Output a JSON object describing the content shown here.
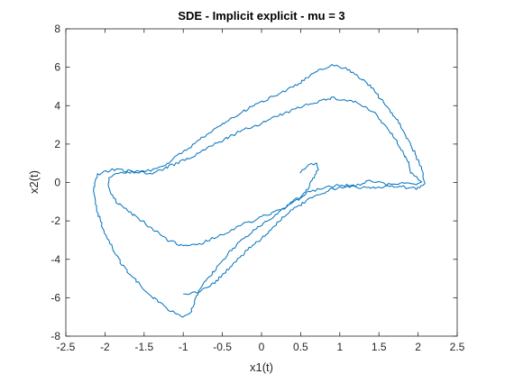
{
  "chart_data": {
    "type": "line",
    "title": "SDE - Implicit explicit - mu = 3",
    "xlabel": "x1(t)",
    "ylabel": "x2(t)",
    "xlim": [
      -2.5,
      2.5
    ],
    "ylim": [
      -8,
      8
    ],
    "xticks": [
      -2.5,
      -2,
      -1.5,
      -1,
      -0.5,
      0,
      0.5,
      1,
      1.5,
      2,
      2.5
    ],
    "yticks": [
      -8,
      -6,
      -4,
      -2,
      0,
      2,
      4,
      6,
      8
    ],
    "xtick_labels": [
      "-2.5",
      "-2",
      "-1.5",
      "-1",
      "-0.5",
      "0",
      "0.5",
      "1",
      "1.5",
      "2",
      "2.5"
    ],
    "ytick_labels": [
      "-8",
      "-6",
      "-4",
      "-2",
      "0",
      "2",
      "4",
      "6",
      "8"
    ],
    "grid": false,
    "line_color": "#0072BD",
    "series": [
      {
        "points": [
          [
            0.5,
            0.55
          ],
          [
            0.55,
            0.7
          ],
          [
            0.6,
            0.95
          ],
          [
            0.7,
            0.95
          ],
          [
            0.72,
            0.7
          ],
          [
            0.68,
            0.4
          ],
          [
            0.63,
            0.0
          ],
          [
            0.58,
            -0.4
          ],
          [
            0.5,
            -0.8
          ],
          [
            0.3,
            -1.3
          ],
          [
            0.0,
            -1.8
          ],
          [
            -0.3,
            -2.3
          ],
          [
            -0.55,
            -2.8
          ],
          [
            -0.8,
            -3.2
          ],
          [
            -1.0,
            -3.3
          ],
          [
            -1.2,
            -3.0
          ],
          [
            -1.4,
            -2.4
          ],
          [
            -1.6,
            -1.8
          ],
          [
            -1.85,
            -1.0
          ],
          [
            -1.95,
            -0.4
          ],
          [
            -1.95,
            0.3
          ],
          [
            -1.8,
            0.55
          ],
          [
            -1.6,
            0.55
          ],
          [
            -1.4,
            0.45
          ],
          [
            -1.2,
            0.8
          ],
          [
            -0.9,
            1.3
          ],
          [
            -0.6,
            2.0
          ],
          [
            -0.3,
            2.6
          ],
          [
            0.0,
            3.1
          ],
          [
            0.3,
            3.6
          ],
          [
            0.6,
            4.1
          ],
          [
            0.9,
            4.4
          ],
          [
            1.2,
            4.2
          ],
          [
            1.45,
            3.6
          ],
          [
            1.65,
            2.6
          ],
          [
            1.8,
            1.6
          ],
          [
            1.88,
            1.0
          ],
          [
            1.9,
            0.5
          ],
          [
            2.0,
            0.2
          ],
          [
            2.05,
            0.0
          ],
          [
            1.95,
            -0.1
          ],
          [
            1.8,
            0.0
          ],
          [
            1.6,
            -0.1
          ],
          [
            1.4,
            0.1
          ],
          [
            1.2,
            -0.2
          ],
          [
            1.0,
            -0.1
          ],
          [
            0.8,
            -0.3
          ],
          [
            0.6,
            -0.5
          ],
          [
            0.4,
            -1.0
          ],
          [
            0.2,
            -1.6
          ],
          [
            0.0,
            -2.2
          ],
          [
            -0.2,
            -2.8
          ],
          [
            -0.4,
            -3.6
          ],
          [
            -0.6,
            -4.6
          ],
          [
            -0.8,
            -5.6
          ],
          [
            -0.9,
            -6.7
          ],
          [
            -1.0,
            -7.0
          ],
          [
            -1.2,
            -6.6
          ],
          [
            -1.5,
            -5.6
          ],
          [
            -1.8,
            -4.2
          ],
          [
            -2.0,
            -2.7
          ],
          [
            -2.1,
            -1.5
          ],
          [
            -2.15,
            -0.4
          ],
          [
            -2.1,
            0.4
          ],
          [
            -1.9,
            0.7
          ],
          [
            -1.7,
            0.6
          ],
          [
            -1.45,
            0.6
          ],
          [
            -1.2,
            1.0
          ],
          [
            -1.0,
            1.6
          ],
          [
            -0.7,
            2.5
          ],
          [
            -0.4,
            3.3
          ],
          [
            -0.1,
            4.0
          ],
          [
            0.2,
            4.6
          ],
          [
            0.5,
            5.2
          ],
          [
            0.75,
            5.9
          ],
          [
            0.9,
            6.1
          ],
          [
            1.1,
            5.9
          ],
          [
            1.35,
            5.2
          ],
          [
            1.6,
            4.0
          ],
          [
            1.8,
            2.8
          ],
          [
            1.95,
            1.6
          ],
          [
            2.05,
            0.7
          ],
          [
            2.08,
            0.0
          ],
          [
            2.0,
            -0.3
          ],
          [
            1.7,
            -0.2
          ],
          [
            1.4,
            -0.3
          ],
          [
            1.1,
            -0.2
          ],
          [
            0.85,
            -0.4
          ],
          [
            0.6,
            -0.9
          ],
          [
            0.4,
            -1.4
          ],
          [
            0.2,
            -2.1
          ],
          [
            0.0,
            -2.9
          ],
          [
            -0.2,
            -3.6
          ],
          [
            -0.4,
            -4.4
          ],
          [
            -0.6,
            -5.2
          ],
          [
            -0.8,
            -5.7
          ],
          [
            -1.0,
            -5.8
          ]
        ]
      }
    ]
  }
}
